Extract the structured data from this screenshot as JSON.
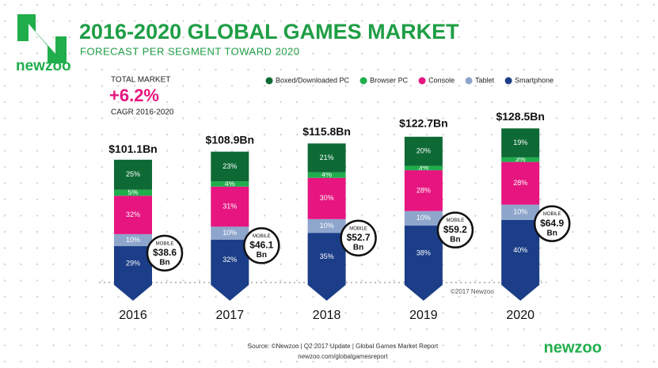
{
  "brand": "newzoo",
  "chart_data": {
    "type": "bar",
    "stacked": true,
    "title": "2016-2020 GLOBAL GAMES MARKET",
    "subtitle": "FORECAST PER SEGMENT TOWARD 2020",
    "summary": {
      "label": "TOTAL MARKET",
      "value": 6.2,
      "value_label": "+6.2%",
      "period": "CAGR 2016-2020"
    },
    "categories": [
      "2016",
      "2017",
      "2018",
      "2019",
      "2020"
    ],
    "series": [
      {
        "name": "Boxed/Downloaded PC",
        "color": "#0d6a35",
        "values": [
          25,
          23,
          21,
          20,
          19
        ],
        "value_labels": [
          "25%",
          "23%",
          "21%",
          "20%",
          "19%"
        ]
      },
      {
        "name": "Browser PC",
        "color": "#1fae4b",
        "values": [
          5,
          4,
          4,
          3,
          3
        ],
        "value_labels": [
          "5%",
          "4%",
          "4%",
          "3%",
          "3%"
        ]
      },
      {
        "name": "Console",
        "color": "#e6157f",
        "values": [
          32,
          31,
          30,
          28,
          28
        ],
        "value_labels": [
          "32%",
          "31%",
          "30%",
          "28%",
          "28%"
        ]
      },
      {
        "name": "Tablet",
        "color": "#8ea5cc",
        "values": [
          10,
          10,
          10,
          10,
          10
        ],
        "value_labels": [
          "10%",
          "10%",
          "10%",
          "10%",
          "10%"
        ]
      },
      {
        "name": "Smartphone",
        "color": "#1c3e88",
        "values": [
          29,
          32,
          35,
          38,
          40
        ],
        "value_labels": [
          "29%",
          "32%",
          "35%",
          "38%",
          "40%"
        ]
      }
    ],
    "totals": {
      "values": [
        101.1,
        108.9,
        115.8,
        122.7,
        128.5
      ],
      "value_labels": [
        "$101.1Bn",
        "$108.9Bn",
        "$115.8Bn",
        "$122.7Bn",
        "$128.5Bn"
      ]
    },
    "mobile": {
      "label": "MOBILE",
      "unit": "Bn",
      "values": [
        38.6,
        46.1,
        52.7,
        59.2,
        64.9
      ],
      "value_labels": [
        "$38.6",
        "$46.1",
        "$52.7",
        "$59.2",
        "$64.9"
      ]
    },
    "credit": "©2017 Newzoo"
  },
  "footer": {
    "source": "Source: ©Newzoo | Q2 2017 Update | Global Games Market Report",
    "url": "newzoo.com/globalgamesreport"
  }
}
